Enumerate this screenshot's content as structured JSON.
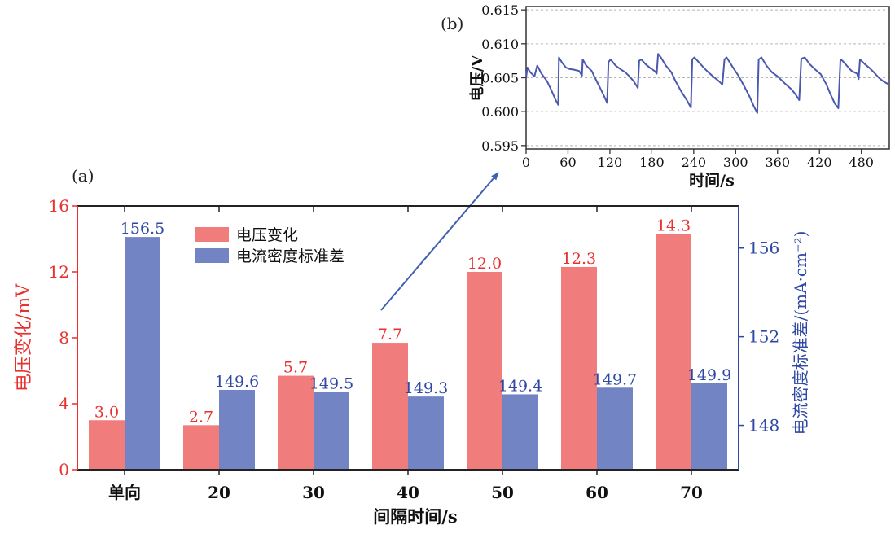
{
  "chart_data": [
    {
      "panel_label": "(a)",
      "type": "bar",
      "categories": [
        "单向",
        "20",
        "30",
        "40",
        "50",
        "60",
        "70"
      ],
      "series": [
        {
          "name": "电压变化",
          "axis": "left",
          "color": "#f07d7b",
          "values": [
            3.0,
            2.7,
            5.7,
            7.7,
            12.0,
            12.3,
            14.3
          ],
          "labels": [
            "3.0",
            "2.7",
            "5.7",
            "7.7",
            "12.0",
            "12.3",
            "14.3"
          ],
          "label_color": "#e8312e"
        },
        {
          "name": "电流密度标准差",
          "axis": "right",
          "color": "#7384c4",
          "values": [
            156.5,
            149.6,
            149.5,
            149.3,
            149.4,
            149.7,
            149.9
          ],
          "labels": [
            "156.5",
            "149.6",
            "149.5",
            "149.3",
            "149.4",
            "149.7",
            "149.9"
          ],
          "label_color": "#2e48a4"
        }
      ],
      "xlabel": "间隔时间/s",
      "ylabel_left": "电压变化/mV",
      "ylabel_right": "电流密度标准差/(mA·cm⁻²)",
      "ylim_left": [
        0,
        16
      ],
      "yticks_left": [
        "0",
        "4",
        "8",
        "12",
        "16"
      ],
      "ylim_right": [
        146,
        157.9
      ],
      "yticks_right": [
        "148",
        "152",
        "156"
      ],
      "legend": [
        "电压变化",
        "电流密度标准差"
      ],
      "legend_position": "top-left",
      "left_axis_color": "#e8312e",
      "right_axis_color": "#2e48a4"
    },
    {
      "panel_label": "(b)",
      "type": "line",
      "xlabel": "时间/s",
      "ylabel": "电压/V",
      "xlim": [
        0,
        520
      ],
      "ylim": [
        0.5945,
        0.6155
      ],
      "xticks": [
        "0",
        "60",
        "120",
        "180",
        "240",
        "300",
        "360",
        "420",
        "480"
      ],
      "yticks": [
        "0.595",
        "0.600",
        "0.605",
        "0.610",
        "0.615"
      ],
      "grid": true,
      "line_color": "#4a58b0",
      "series": [
        {
          "name": "电压",
          "x": [
            0,
            2,
            6,
            12,
            16,
            22,
            30,
            36,
            42,
            46,
            47,
            51,
            57,
            62,
            68,
            76,
            80,
            81,
            86,
            94,
            100,
            106,
            112,
            116,
            118,
            121,
            128,
            136,
            142,
            148,
            154,
            160,
            162,
            165,
            171,
            178,
            184,
            187,
            189,
            193,
            200,
            208,
            214,
            222,
            230,
            236,
            238,
            241,
            248,
            256,
            262,
            270,
            276,
            281,
            284,
            287,
            295,
            304,
            312,
            320,
            326,
            331,
            333,
            337,
            344,
            352,
            360,
            366,
            372,
            380,
            386,
            391,
            394,
            399,
            406,
            414,
            422,
            430,
            436,
            442,
            447,
            450,
            453,
            459,
            466,
            474,
            476,
            478,
            485,
            492,
            498,
            505,
            511,
            516,
            520
          ],
          "y": [
            0.605,
            0.6065,
            0.6058,
            0.6052,
            0.6068,
            0.6056,
            0.6045,
            0.6032,
            0.6018,
            0.601,
            0.608,
            0.6073,
            0.6065,
            0.6063,
            0.6062,
            0.606,
            0.6053,
            0.6077,
            0.6068,
            0.606,
            0.6047,
            0.6035,
            0.6022,
            0.6013,
            0.6073,
            0.6077,
            0.6068,
            0.6062,
            0.6058,
            0.6052,
            0.6045,
            0.6035,
            0.6075,
            0.6077,
            0.607,
            0.6064,
            0.606,
            0.6056,
            0.6085,
            0.608,
            0.6068,
            0.6058,
            0.6045,
            0.603,
            0.6017,
            0.6006,
            0.6077,
            0.608,
            0.6072,
            0.6063,
            0.6057,
            0.605,
            0.6045,
            0.604,
            0.6077,
            0.608,
            0.6067,
            0.6053,
            0.6038,
            0.6022,
            0.6008,
            0.5998,
            0.6077,
            0.608,
            0.6068,
            0.6058,
            0.6052,
            0.6046,
            0.604,
            0.6033,
            0.6025,
            0.6017,
            0.6078,
            0.608,
            0.607,
            0.6062,
            0.6055,
            0.604,
            0.6025,
            0.6012,
            0.6005,
            0.6077,
            0.6075,
            0.6068,
            0.606,
            0.6056,
            0.6048,
            0.6077,
            0.607,
            0.6064,
            0.6058,
            0.605,
            0.6045,
            0.6042,
            0.604
          ]
        }
      ]
    }
  ]
}
